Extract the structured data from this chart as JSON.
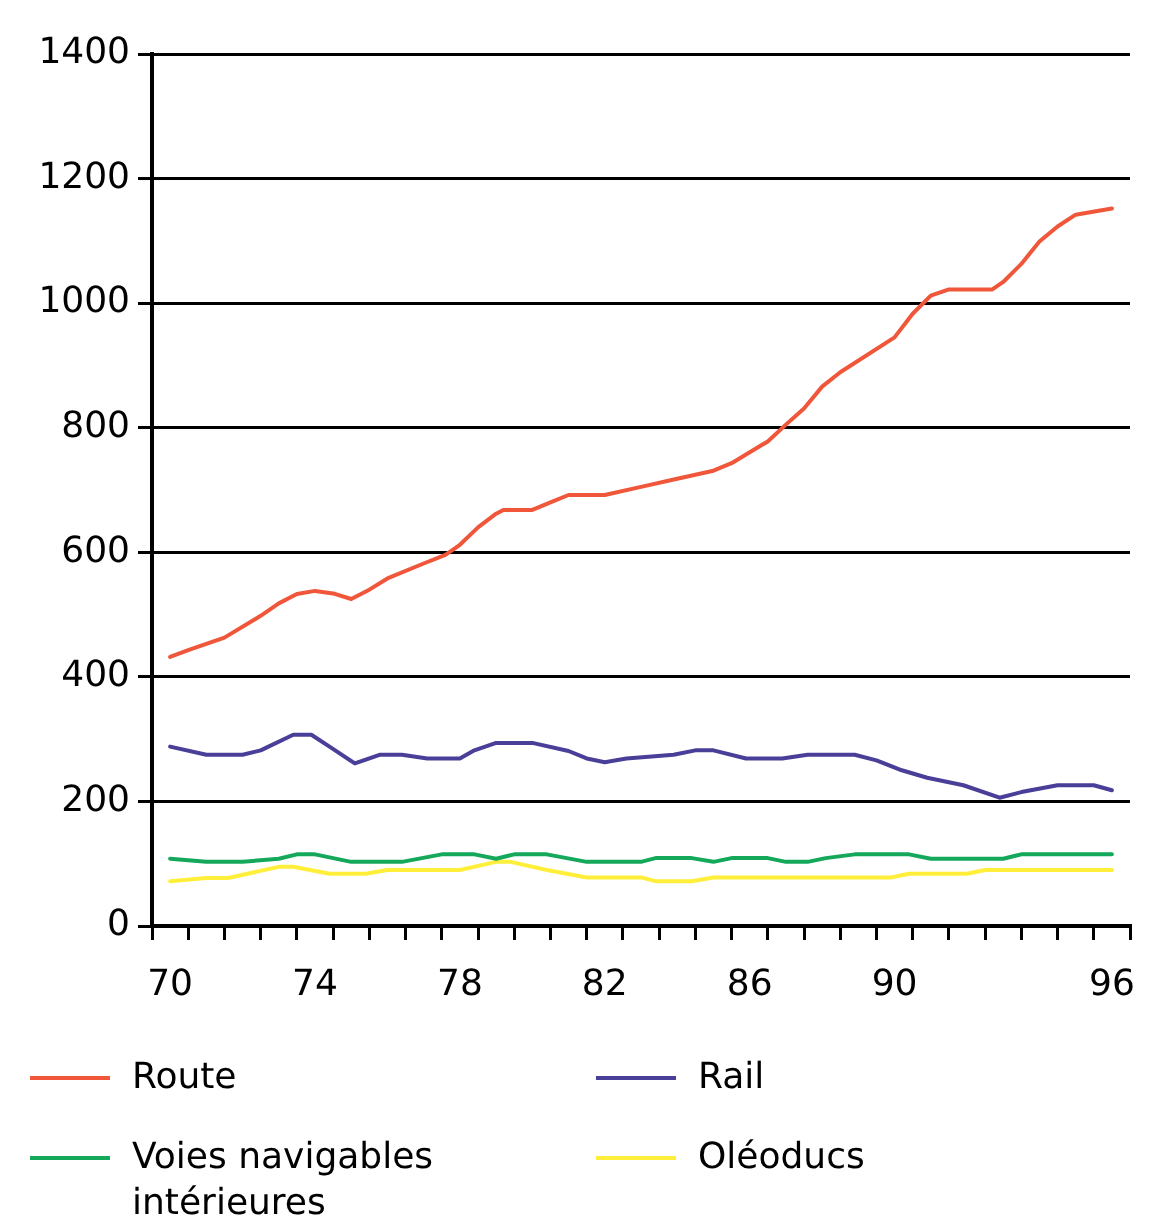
{
  "chart_data": {
    "type": "line",
    "series": [
      {
        "name": "Route",
        "color": "#f0573a",
        "x": [
          70,
          70.5,
          71.5,
          72.5,
          73,
          73.5,
          74,
          74.5,
          75,
          75.5,
          76,
          77,
          77.6,
          78,
          78.5,
          79,
          79.2,
          80,
          80.5,
          81,
          82,
          83,
          84,
          85,
          85.5,
          86.5,
          87,
          87.5,
          88,
          88.5,
          90,
          90.5,
          91,
          91.5,
          92.7,
          93,
          93.5,
          94,
          94.5,
          95,
          96
        ],
        "values": [
          432,
          443,
          463,
          498,
          518,
          533,
          538,
          534,
          525,
          540,
          558,
          582,
          596,
          612,
          640,
          662,
          668,
          668,
          680,
          692,
          692,
          705,
          718,
          731,
          743,
          778,
          805,
          831,
          866,
          889,
          945,
          983,
          1012,
          1022,
          1022,
          1034,
          1063,
          1099,
          1123,
          1142,
          1152
        ]
      },
      {
        "name": "Rail",
        "color": "#4a3f98",
        "x": [
          70,
          71,
          72,
          72.5,
          73.4,
          73.9,
          74.4,
          75.1,
          75.8,
          76.4,
          77.1,
          78,
          78.4,
          79,
          80,
          81,
          81.5,
          82,
          82.6,
          83.9,
          84.5,
          85,
          85.9,
          86.9,
          87.6,
          88.9,
          89.5,
          90.2,
          90.9,
          91.9,
          92.9,
          93.5,
          94.5,
          95.5,
          96
        ],
        "values": [
          288,
          275,
          275,
          282,
          307,
          307,
          288,
          261,
          275,
          275,
          269,
          269,
          282,
          294,
          294,
          281,
          269,
          263,
          269,
          275,
          282,
          282,
          269,
          269,
          275,
          275,
          266,
          250,
          238,
          226,
          206,
          215,
          226,
          226,
          218
        ]
      },
      {
        "name": "Voies navigables intérieures",
        "color": "#14a85b",
        "x": [
          70,
          71,
          72,
          73,
          73.5,
          74,
          75,
          76.4,
          77.5,
          78.4,
          79,
          79.5,
          80.4,
          81.5,
          83,
          83.4,
          84.4,
          85,
          85.5,
          86.5,
          87,
          87.6,
          88.1,
          88.9,
          90.4,
          91,
          93,
          93.5,
          96
        ],
        "values": [
          108,
          103,
          103,
          108,
          115,
          115,
          103,
          103,
          115,
          115,
          108,
          115,
          115,
          103,
          103,
          109,
          109,
          103,
          109,
          109,
          103,
          103,
          109,
          115,
          115,
          108,
          108,
          115,
          115
        ]
      },
      {
        "name": "Oléoducs",
        "color": "#ffef3a",
        "x": [
          70,
          71,
          71.6,
          73,
          73.4,
          74.4,
          75.4,
          76,
          78,
          79,
          79.4,
          80.4,
          81.5,
          83,
          83.4,
          84.4,
          85,
          89.9,
          90.4,
          92,
          92.5,
          96
        ],
        "values": [
          72,
          77,
          77,
          95,
          95,
          84,
          84,
          90,
          90,
          103,
          103,
          90,
          78,
          78,
          72,
          72,
          78,
          78,
          84,
          84,
          90,
          90
        ]
      }
    ],
    "xlim": [
      69.5,
      96.5
    ],
    "xticks": [
      {
        "value": 69.5,
        "label": null
      },
      70,
      {
        "value": 70.5,
        "label": null
      },
      {
        "value": 71.5,
        "label": null
      },
      {
        "value": 72.5,
        "label": null
      },
      {
        "value": 73.5,
        "label": null
      },
      74,
      {
        "value": 74.5,
        "label": null
      },
      {
        "value": 75.5,
        "label": null
      },
      {
        "value": 76.5,
        "label": null
      },
      {
        "value": 77.5,
        "label": null
      },
      78,
      {
        "value": 78.5,
        "label": null
      },
      {
        "value": 79.5,
        "label": null
      },
      {
        "value": 80.5,
        "label": null
      },
      {
        "value": 81.5,
        "label": null
      },
      82,
      {
        "value": 82.5,
        "label": null
      },
      {
        "value": 83.5,
        "label": null
      },
      {
        "value": 84.5,
        "label": null
      },
      {
        "value": 85.5,
        "label": null
      },
      86,
      {
        "value": 86.5,
        "label": null
      },
      {
        "value": 87.5,
        "label": null
      },
      {
        "value": 88.5,
        "label": null
      },
      {
        "value": 89.5,
        "label": null
      },
      90,
      {
        "value": 90.5,
        "label": null
      },
      {
        "value": 91.5,
        "label": null
      },
      {
        "value": 92.5,
        "label": null
      },
      {
        "value": 93.5,
        "label": null
      },
      {
        "value": 94.5,
        "label": null
      },
      {
        "value": 95.5,
        "label": null
      },
      96,
      {
        "value": 96.5,
        "label": null
      }
    ],
    "ylim": [
      0,
      1400
    ],
    "yticks": [
      0,
      200,
      400,
      600,
      800,
      1000,
      1200,
      1400
    ],
    "grid": "y",
    "legend": "bottom"
  }
}
